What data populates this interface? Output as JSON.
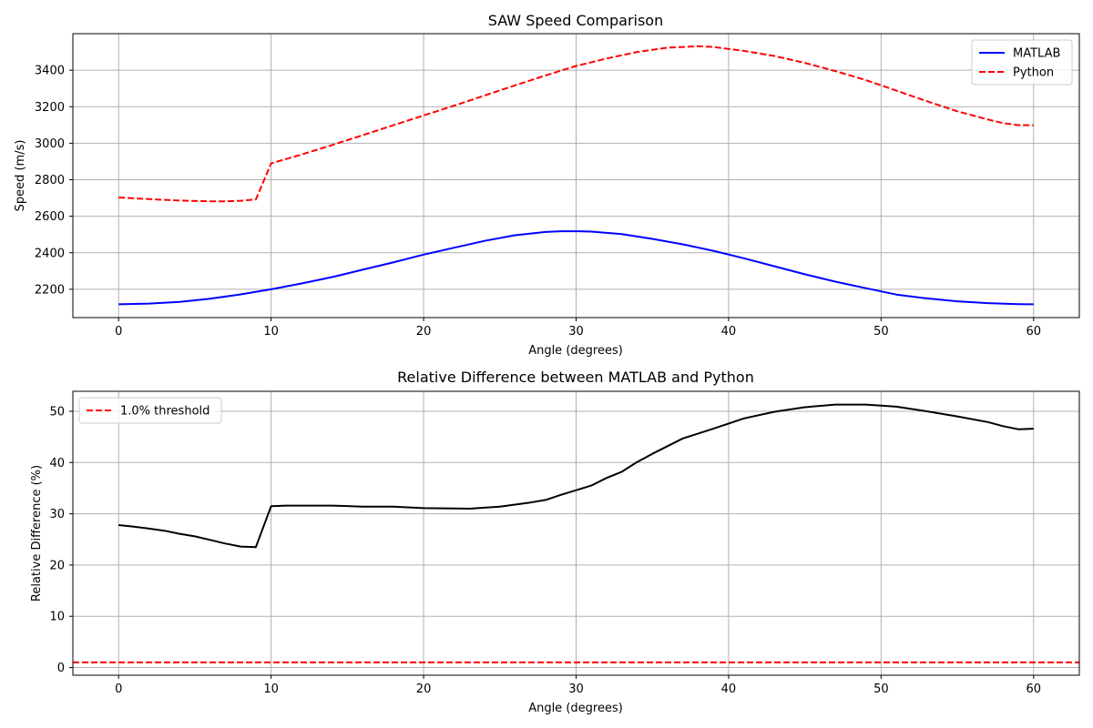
{
  "chart_data": [
    {
      "type": "line",
      "title": "SAW Speed Comparison",
      "xlabel": "Angle (degrees)",
      "ylabel": "Speed (m/s)",
      "xlim": [
        -3,
        63
      ],
      "ylim": [
        2045,
        3600
      ],
      "xticks": [
        0,
        10,
        20,
        30,
        40,
        50,
        60
      ],
      "yticks": [
        2200,
        2400,
        2600,
        2800,
        3000,
        3200,
        3400
      ],
      "grid": true,
      "legend_position": "top-right",
      "series": [
        {
          "name": "MATLAB",
          "color": "#0000ff",
          "style": "solid",
          "x": [
            0,
            2,
            4,
            6,
            8,
            10,
            12,
            14,
            16,
            18,
            20,
            22,
            24,
            26,
            28,
            29,
            30,
            31,
            33,
            35,
            37,
            39,
            41,
            43,
            45,
            47,
            49,
            51,
            53,
            55,
            57,
            59,
            60
          ],
          "y": [
            2118,
            2122,
            2131,
            2148,
            2172,
            2200,
            2232,
            2267,
            2307,
            2347,
            2390,
            2428,
            2465,
            2496,
            2514,
            2518,
            2518,
            2516,
            2502,
            2476,
            2446,
            2411,
            2370,
            2326,
            2282,
            2242,
            2206,
            2171,
            2150,
            2134,
            2124,
            2119,
            2118
          ]
        },
        {
          "name": "Python",
          "color": "#ff0000",
          "style": "dashed",
          "x": [
            0,
            2,
            4,
            6,
            7,
            8,
            9,
            10,
            12,
            14,
            16,
            18,
            20,
            22,
            24,
            26,
            28,
            30,
            32,
            34,
            36,
            38,
            39,
            41,
            43,
            45,
            47,
            49,
            51,
            53,
            55,
            57,
            58,
            59,
            60
          ],
          "y": [
            2703,
            2694,
            2686,
            2682,
            2682,
            2685,
            2692,
            2890,
            2938,
            2990,
            3044,
            3098,
            3152,
            3206,
            3261,
            3317,
            3371,
            3423,
            3464,
            3500,
            3523,
            3531,
            3527,
            3506,
            3478,
            3440,
            3395,
            3346,
            3288,
            3230,
            3175,
            3130,
            3110,
            3099,
            3098
          ]
        }
      ]
    },
    {
      "type": "line",
      "title": "Relative Difference between MATLAB and Python",
      "xlabel": "Angle (degrees)",
      "ylabel": "Relative Difference (%)",
      "xlim": [
        -3,
        63
      ],
      "ylim": [
        -1.5,
        53.9
      ],
      "xticks": [
        0,
        10,
        20,
        30,
        40,
        50,
        60
      ],
      "yticks": [
        0,
        10,
        20,
        30,
        40,
        50
      ],
      "grid": true,
      "legend_position": "top-left",
      "series": [
        {
          "name": "",
          "color": "#000000",
          "style": "solid",
          "x": [
            0,
            1,
            2,
            3,
            4,
            5,
            6,
            7,
            8,
            9,
            10,
            11,
            12,
            14,
            16,
            18,
            20,
            23,
            25,
            27,
            28,
            29,
            31,
            32,
            33,
            34,
            35,
            37,
            39,
            41,
            43,
            45,
            47,
            49,
            51,
            53,
            55,
            57,
            58,
            59,
            60
          ],
          "y": [
            27.8,
            27.5,
            27.1,
            26.7,
            26.1,
            25.6,
            24.9,
            24.2,
            23.6,
            23.5,
            31.5,
            31.6,
            31.6,
            31.6,
            31.4,
            31.4,
            31.1,
            31.0,
            31.4,
            32.2,
            32.7,
            33.7,
            35.5,
            37.0,
            38.2,
            40.1,
            41.7,
            44.7,
            46.6,
            48.6,
            49.9,
            50.8,
            51.3,
            51.3,
            50.9,
            50.0,
            49.0,
            47.9,
            47.1,
            46.5,
            46.6
          ]
        },
        {
          "name": "1.0% threshold",
          "color": "#ff0000",
          "style": "dashed",
          "x": [
            -3,
            63
          ],
          "y": [
            1.0,
            1.0
          ]
        }
      ]
    }
  ]
}
